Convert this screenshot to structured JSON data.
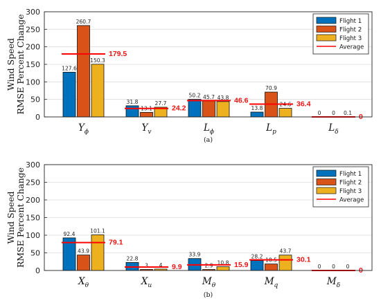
{
  "figure": {
    "ylabel_line1": "Wind Speed",
    "ylabel_line2": "RMSE Percent Change"
  },
  "colors": {
    "flight1": "#0072BD",
    "flight2": "#D95319",
    "flight3": "#EDB120",
    "average": "#FF0000"
  },
  "chart_data": [
    {
      "type": "bar",
      "panel_label": "(a)",
      "categories": [
        {
          "symbol": "Y",
          "sub": "ϕ"
        },
        {
          "symbol": "Y",
          "sub": "v"
        },
        {
          "symbol": "L",
          "sub": "ϕ"
        },
        {
          "symbol": "L",
          "sub": "p"
        },
        {
          "symbol": "L",
          "sub": "δ"
        }
      ],
      "series": [
        {
          "name": "Flight 1",
          "values": [
            127.6,
            31.8,
            50.2,
            13.8,
            0
          ],
          "labels": [
            "127.6",
            "31.8",
            "50.2",
            "13.8",
            "0"
          ]
        },
        {
          "name": "Flight 2",
          "values": [
            260.7,
            13.1,
            45.7,
            70.9,
            0
          ],
          "labels": [
            "260.7",
            "13.1",
            "45.7",
            "70.9",
            "0"
          ]
        },
        {
          "name": "Flight 3",
          "values": [
            150.3,
            27.7,
            43.8,
            24.6,
            0.1
          ],
          "labels": [
            "150.3",
            "27.7",
            "43.8",
            "24.6",
            "0.1"
          ]
        }
      ],
      "average": {
        "name": "Average",
        "values": [
          179.5,
          24.2,
          46.6,
          36.4,
          0
        ],
        "labels": [
          "179.5",
          "24.2",
          "46.6",
          "36.4",
          "0"
        ]
      },
      "ylim": [
        0,
        300
      ],
      "yticks": [
        0,
        50,
        100,
        150,
        200,
        250,
        300
      ],
      "ylabel": "Wind Speed RMSE Percent Change",
      "grid": true,
      "legend_position": "top-right"
    },
    {
      "type": "bar",
      "panel_label": "(b)",
      "categories": [
        {
          "symbol": "X",
          "sub": "θ"
        },
        {
          "symbol": "X",
          "sub": "u"
        },
        {
          "symbol": "M",
          "sub": "θ"
        },
        {
          "symbol": "M",
          "sub": "q"
        },
        {
          "symbol": "M",
          "sub": "δ"
        }
      ],
      "series": [
        {
          "name": "Flight 1",
          "values": [
            92.4,
            22.8,
            33.9,
            28.2,
            0
          ],
          "labels": [
            "92.4",
            "22.8",
            "33.9",
            "28.2",
            "0"
          ]
        },
        {
          "name": "Flight 2",
          "values": [
            43.9,
            3,
            2.9,
            18.5,
            0
          ],
          "labels": [
            "43.9",
            "3",
            "2.9",
            "18.5",
            "0"
          ]
        },
        {
          "name": "Flight 3",
          "values": [
            101.1,
            4,
            10.8,
            43.7,
            0
          ],
          "labels": [
            "101.1",
            "4",
            "10.8",
            "43.7",
            "0"
          ]
        }
      ],
      "average": {
        "name": "Average",
        "values": [
          79.1,
          9.9,
          15.9,
          30.1,
          0
        ],
        "labels": [
          "79.1",
          "9.9",
          "15.9",
          "30.1",
          "0"
        ]
      },
      "ylim": [
        0,
        300
      ],
      "yticks": [
        0,
        50,
        100,
        150,
        200,
        250,
        300
      ],
      "ylabel": "Wind Speed RMSE Percent Change",
      "grid": true,
      "legend_position": "top-right"
    }
  ]
}
